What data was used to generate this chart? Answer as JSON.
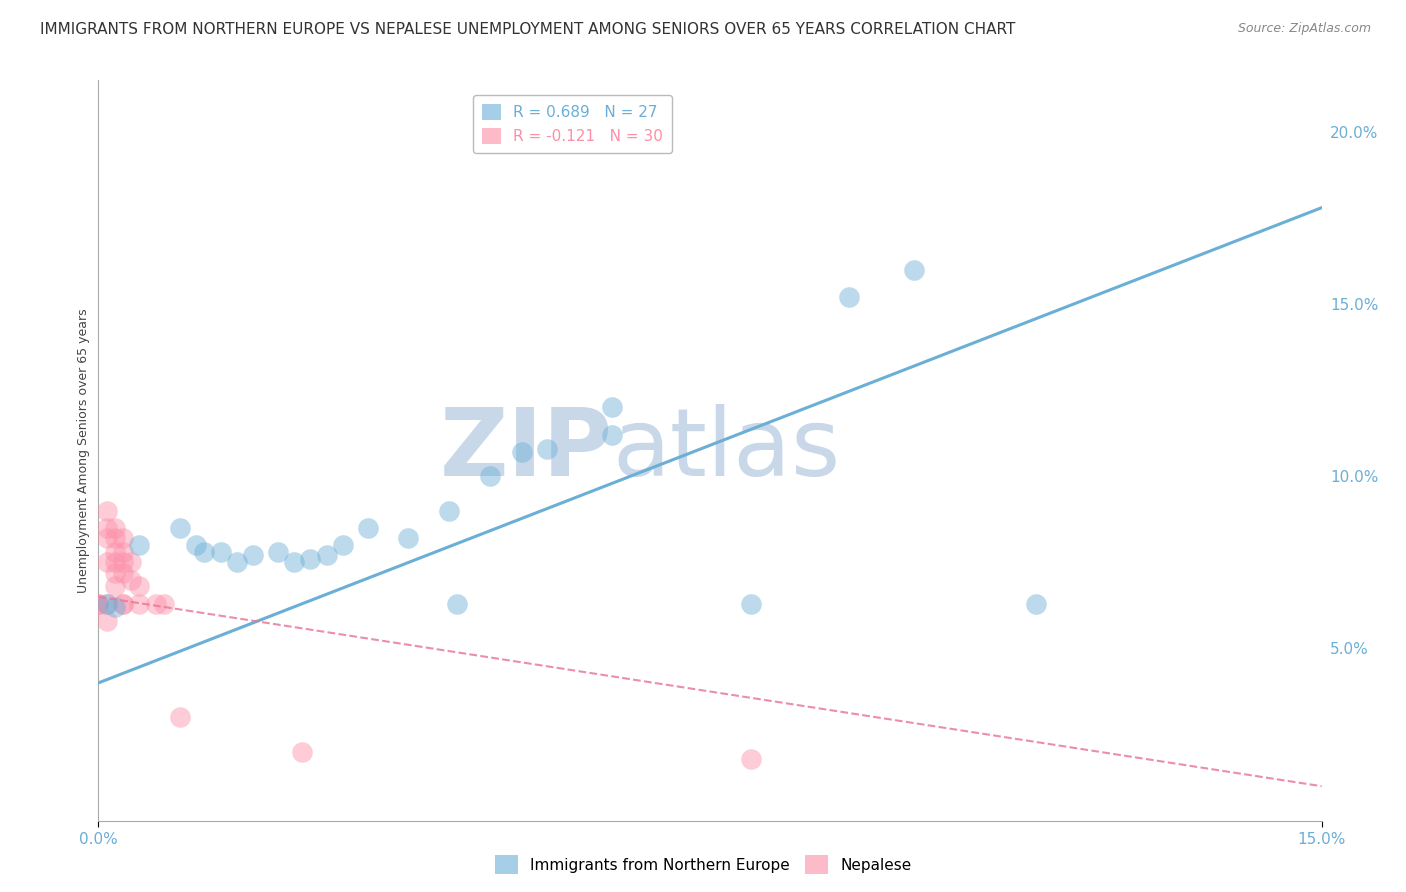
{
  "title": "IMMIGRANTS FROM NORTHERN EUROPE VS NEPALESE UNEMPLOYMENT AMONG SENIORS OVER 65 YEARS CORRELATION CHART",
  "source": "Source: ZipAtlas.com",
  "xlabel_blue": "Immigrants from Northern Europe",
  "xlabel_pink": "Nepalese",
  "ylabel": "Unemployment Among Seniors over 65 years",
  "xlim": [
    0.0,
    0.15
  ],
  "ylim": [
    0.0,
    0.215
  ],
  "blue_R": 0.689,
  "blue_N": 27,
  "pink_R": -0.121,
  "pink_N": 30,
  "blue_scatter": [
    [
      0.001,
      0.063
    ],
    [
      0.002,
      0.062
    ],
    [
      0.005,
      0.08
    ],
    [
      0.01,
      0.085
    ],
    [
      0.012,
      0.08
    ],
    [
      0.013,
      0.078
    ],
    [
      0.015,
      0.078
    ],
    [
      0.017,
      0.075
    ],
    [
      0.019,
      0.077
    ],
    [
      0.022,
      0.078
    ],
    [
      0.024,
      0.075
    ],
    [
      0.026,
      0.076
    ],
    [
      0.028,
      0.077
    ],
    [
      0.03,
      0.08
    ],
    [
      0.033,
      0.085
    ],
    [
      0.038,
      0.082
    ],
    [
      0.043,
      0.09
    ],
    [
      0.044,
      0.063
    ],
    [
      0.048,
      0.1
    ],
    [
      0.052,
      0.107
    ],
    [
      0.055,
      0.108
    ],
    [
      0.063,
      0.12
    ],
    [
      0.063,
      0.112
    ],
    [
      0.08,
      0.063
    ],
    [
      0.092,
      0.152
    ],
    [
      0.1,
      0.16
    ],
    [
      0.115,
      0.063
    ]
  ],
  "pink_scatter": [
    [
      0.0,
      0.063
    ],
    [
      0.0,
      0.063
    ],
    [
      0.0,
      0.063
    ],
    [
      0.001,
      0.082
    ],
    [
      0.001,
      0.085
    ],
    [
      0.001,
      0.09
    ],
    [
      0.001,
      0.075
    ],
    [
      0.001,
      0.063
    ],
    [
      0.001,
      0.058
    ],
    [
      0.002,
      0.085
    ],
    [
      0.002,
      0.082
    ],
    [
      0.002,
      0.078
    ],
    [
      0.002,
      0.075
    ],
    [
      0.002,
      0.072
    ],
    [
      0.002,
      0.068
    ],
    [
      0.003,
      0.082
    ],
    [
      0.003,
      0.078
    ],
    [
      0.003,
      0.075
    ],
    [
      0.003,
      0.072
    ],
    [
      0.003,
      0.063
    ],
    [
      0.003,
      0.063
    ],
    [
      0.004,
      0.075
    ],
    [
      0.004,
      0.07
    ],
    [
      0.005,
      0.068
    ],
    [
      0.005,
      0.063
    ],
    [
      0.007,
      0.063
    ],
    [
      0.008,
      0.063
    ],
    [
      0.01,
      0.03
    ],
    [
      0.025,
      0.02
    ],
    [
      0.08,
      0.018
    ]
  ],
  "blue_line_x": [
    0.0,
    0.15
  ],
  "blue_line_y": [
    0.04,
    0.178
  ],
  "pink_line_x": [
    0.0,
    0.15
  ],
  "pink_line_y": [
    0.065,
    0.01
  ],
  "background_color": "#ffffff",
  "blue_color": "#6baed6",
  "pink_color": "#fc8fa8",
  "pink_line_color": "#e87a9a",
  "grid_color": "#d0d0d0",
  "watermark_zip": "ZIP",
  "watermark_atlas": "atlas",
  "watermark_color": "#c8d8e8",
  "title_fontsize": 11,
  "source_fontsize": 9,
  "axis_label_fontsize": 9,
  "tick_fontsize": 10,
  "legend_fontsize": 11
}
